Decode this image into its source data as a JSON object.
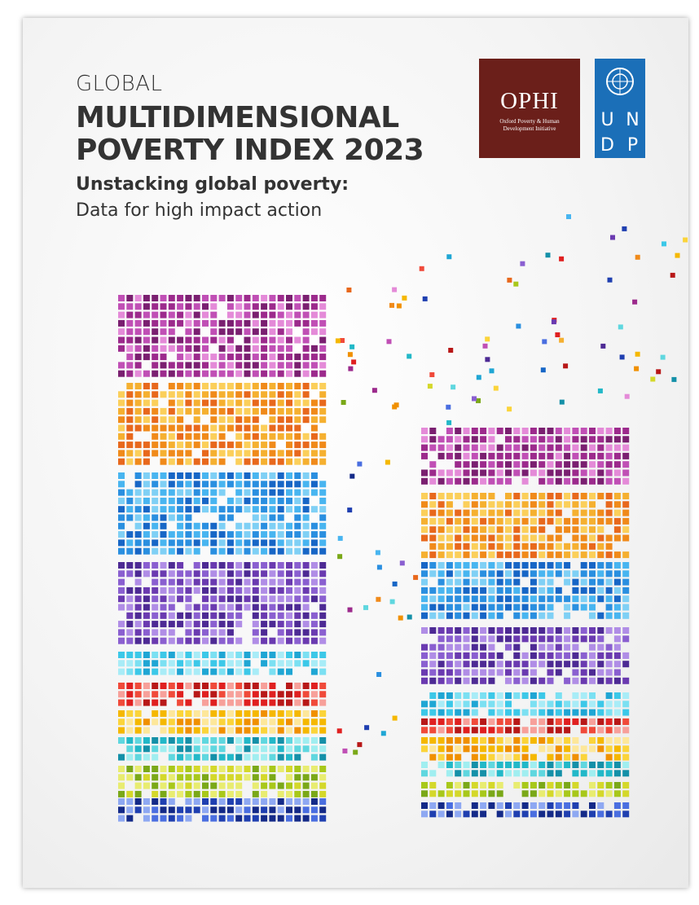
{
  "header": {
    "line1": "GLOBAL",
    "line2": "MULTIDIMENSIONAL",
    "line3": "POVERTY INDEX 2023"
  },
  "subtitle": {
    "line1": "Unstacking global poverty:",
    "line2": "Data for high impact action"
  },
  "logos": {
    "ophi": {
      "name": "OPHI",
      "full_name": [
        "Oxford Poverty & Human",
        "Development Initiative"
      ]
    },
    "undp": {
      "letters": [
        "U",
        "N",
        "D",
        "P"
      ]
    }
  }
}
